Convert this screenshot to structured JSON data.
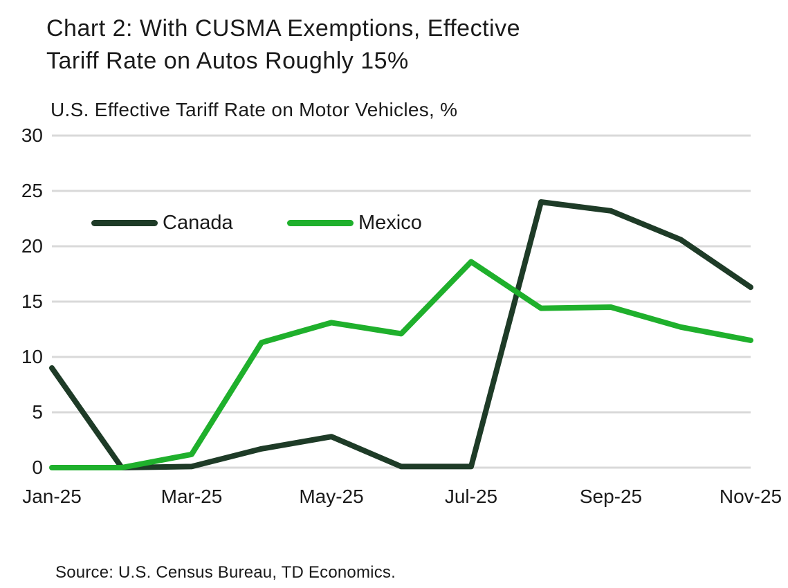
{
  "header": {
    "title_line1": "Chart 2: With CUSMA Exemptions, Effective",
    "title_line2": "Tariff Rate on Autos Roughly 15%"
  },
  "chart_data": {
    "type": "line",
    "title": "Chart 2: With CUSMA Exemptions, Effective Tariff Rate on Autos Roughly 15%",
    "axis_title": "U.S. Effective Tariff Rate on Motor Vehicles, %",
    "x": [
      "Jan-25",
      "Feb-25",
      "Mar-25",
      "Apr-25",
      "May-25",
      "Jun-25",
      "Jul-25",
      "Aug-25",
      "Sep-25",
      "Oct-25",
      "Nov-25"
    ],
    "x_tick_labels": [
      "Jan-25",
      "Mar-25",
      "May-25",
      "Jul-25",
      "Sep-25",
      "Nov-25"
    ],
    "x_tick_indices": [
      0,
      2,
      4,
      6,
      8,
      10
    ],
    "series": [
      {
        "name": "Canada",
        "color": "#1e3b27",
        "values": [
          9.0,
          0.0,
          0.1,
          1.7,
          2.8,
          0.1,
          0.1,
          24.0,
          23.2,
          20.6,
          16.3
        ]
      },
      {
        "name": "Mexico",
        "color": "#1fb02c",
        "values": [
          0.0,
          0.0,
          1.2,
          11.3,
          13.1,
          12.1,
          18.6,
          14.4,
          14.5,
          12.7,
          11.5
        ]
      }
    ],
    "ylim": [
      0,
      30
    ],
    "yticks": [
      0,
      5,
      10,
      15,
      20,
      25,
      30
    ],
    "grid": "horizontal",
    "gridline_color": "#d9d9d9",
    "text_color": "#1a1a1a",
    "legend_position": "inside-top-left",
    "line_width": 8
  },
  "footer": {
    "source": "Source: U.S. Census Bureau, TD Economics."
  }
}
